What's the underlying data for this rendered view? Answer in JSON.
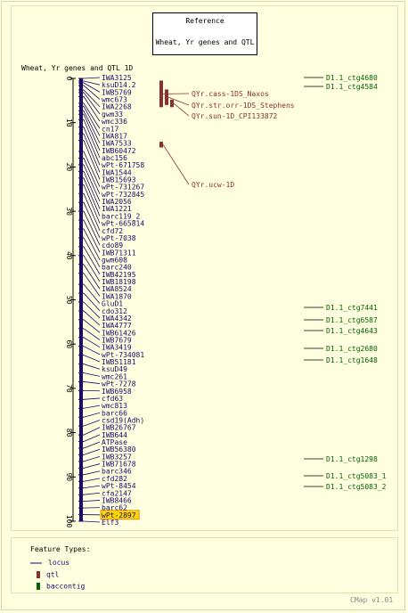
{
  "reference": {
    "title": "Reference",
    "subtitle": "Wheat, Yr genes and QTL"
  },
  "map_title": "Wheat, Yr genes and QTL 1D",
  "scale": {
    "ticks": [
      0,
      10,
      20,
      30,
      40,
      50,
      60,
      70,
      80,
      90,
      100
    ]
  },
  "loci": [
    {
      "name": "IWA3125",
      "pos": 0.0
    },
    {
      "name": "ksuD14.2",
      "pos": 0.6
    },
    {
      "name": "IWB5769",
      "pos": 1.0
    },
    {
      "name": "wmc673",
      "pos": 1.6
    },
    {
      "name": "IWA2268",
      "pos": 2.6
    },
    {
      "name": "gwm33",
      "pos": 3.2
    },
    {
      "name": "wmc336",
      "pos": 4.1
    },
    {
      "name": "cn17",
      "pos": 5.6
    },
    {
      "name": "IWA817",
      "pos": 6.3
    },
    {
      "name": "IWA7533",
      "pos": 7.3
    },
    {
      "name": "IWB60472",
      "pos": 8.1
    },
    {
      "name": "abc156",
      "pos": 9.3
    },
    {
      "name": "wPt-671758",
      "pos": 11.0
    },
    {
      "name": "IWA1544",
      "pos": 12.5
    },
    {
      "name": "IWB15693",
      "pos": 14.0
    },
    {
      "name": "wPt-731267",
      "pos": 16.5
    },
    {
      "name": "wPt-732845",
      "pos": 18.0
    },
    {
      "name": "IWA2056",
      "pos": 19.5
    },
    {
      "name": "IWA1221",
      "pos": 21.0
    },
    {
      "name": "barc119_2",
      "pos": 22.5
    },
    {
      "name": "wPt-665814",
      "pos": 24.0
    },
    {
      "name": "cfd72",
      "pos": 26.0
    },
    {
      "name": "wPt-7038",
      "pos": 28.0
    },
    {
      "name": "cdo89",
      "pos": 30.0
    },
    {
      "name": "IWB71311",
      "pos": 32.0
    },
    {
      "name": "gwm608",
      "pos": 34.0
    },
    {
      "name": "barc240",
      "pos": 36.0
    },
    {
      "name": "IWB42195",
      "pos": 38.0
    },
    {
      "name": "IWB18198",
      "pos": 40.0
    },
    {
      "name": "IWA8524",
      "pos": 42.0
    },
    {
      "name": "IWA1870",
      "pos": 44.0
    },
    {
      "name": "GluD1",
      "pos": 46.5
    },
    {
      "name": "cdo312",
      "pos": 48.5
    },
    {
      "name": "IWA4342",
      "pos": 50.5
    },
    {
      "name": "IWA4777",
      "pos": 52.5
    },
    {
      "name": "IWB61426",
      "pos": 54.5
    },
    {
      "name": "IWB7679",
      "pos": 56.5
    },
    {
      "name": "IWA3419",
      "pos": 58.5
    },
    {
      "name": "wPt-734081",
      "pos": 60.5
    },
    {
      "name": "IWB51181",
      "pos": 62.5
    },
    {
      "name": "ksuD49",
      "pos": 64.5
    },
    {
      "name": "wmc261",
      "pos": 66.5
    },
    {
      "name": "wPt-7278",
      "pos": 68.5
    },
    {
      "name": "IWB6958",
      "pos": 70.5
    },
    {
      "name": "cfd63",
      "pos": 72.5
    },
    {
      "name": "wmc813",
      "pos": 74.5
    },
    {
      "name": "barc66",
      "pos": 76.5
    },
    {
      "name": "csd19(Adh)",
      "pos": 78.5
    },
    {
      "name": "IWB26767",
      "pos": 80.5
    },
    {
      "name": "IWB644",
      "pos": 82.0
    },
    {
      "name": "ATPase",
      "pos": 83.5
    },
    {
      "name": "IWB56380",
      "pos": 85.0
    },
    {
      "name": "IWB3257",
      "pos": 86.5
    },
    {
      "name": "IWB71678",
      "pos": 88.0
    },
    {
      "name": "barc346",
      "pos": 89.5
    },
    {
      "name": "cfd282",
      "pos": 91.0
    },
    {
      "name": "wPt-8454",
      "pos": 92.5
    },
    {
      "name": "cfa2147",
      "pos": 94.0
    },
    {
      "name": "IWB8466",
      "pos": 95.5
    },
    {
      "name": "barc62",
      "pos": 97.0
    },
    {
      "name": "wPt-2897",
      "pos": 98.5,
      "highlight": true
    },
    {
      "name": "Elf3",
      "pos": 100.0
    }
  ],
  "qtls": [
    {
      "name": "QYr.cass-1DS_Naxos",
      "start": 0.5,
      "end": 6.5
    },
    {
      "name": "QYr.str.orr-1DS_Stephens",
      "start": 2.5,
      "end": 6.0
    },
    {
      "name": "QYr.sun-1D_CPI133872",
      "start": 4.8,
      "end": 6.5
    },
    {
      "name": "QYr.ucw-1D",
      "start": 14.3,
      "end": 15.6
    }
  ],
  "contigs": [
    {
      "name": "D1.1_ctg4680"
    },
    {
      "name": "D1.1_ctg4584"
    },
    {
      "name": "D1.1_ctg7441"
    },
    {
      "name": "D1.1_ctg6587"
    },
    {
      "name": "D1.1_ctg4643"
    },
    {
      "name": "D1.1_ctg2680"
    },
    {
      "name": "D1.1_ctg1648"
    },
    {
      "name": "D1.1_ctg1298"
    },
    {
      "name": "D1.1_ctg5083_1"
    },
    {
      "name": "D1.1_ctg5083_2"
    }
  ],
  "legend": {
    "title": "Feature Types:",
    "items": [
      {
        "label": "locus"
      },
      {
        "label": "qtl"
      },
      {
        "label": "baccontig"
      }
    ]
  },
  "footer": "CMap v1.01",
  "colors": {
    "background": "#FFFFE0",
    "locus": "#1A0A6B",
    "qtl": "#8B2E2E",
    "contig": "#006400",
    "highlight": "#FFD700"
  }
}
